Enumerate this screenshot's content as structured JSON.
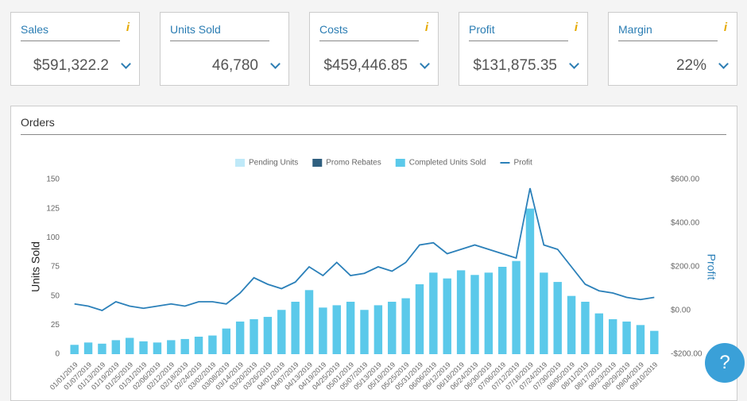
{
  "kpis": [
    {
      "label": "Sales",
      "value": "$591,322.2",
      "info": "i"
    },
    {
      "label": "Units Sold",
      "value": "46,780"
    },
    {
      "label": "Costs",
      "value": "$459,446.85",
      "info": "i"
    },
    {
      "label": "Profit",
      "value": "$131,875.35",
      "info": "i"
    },
    {
      "label": "Margin",
      "value": "22%",
      "info": "i"
    }
  ],
  "help": "?",
  "chart_data": {
    "type": "bar",
    "title": "Orders",
    "y_label": "Units Sold",
    "y2_label": "Profit",
    "categories": [
      "01/01/2019",
      "01/07/2019",
      "01/13/2019",
      "01/19/2019",
      "01/25/2019",
      "01/31/2019",
      "02/06/2019",
      "02/12/2019",
      "02/18/2019",
      "02/24/2019",
      "03/02/2019",
      "03/08/2019",
      "03/14/2019",
      "03/20/2019",
      "03/26/2019",
      "04/01/2019",
      "04/07/2019",
      "04/13/2019",
      "04/19/2019",
      "04/25/2019",
      "05/01/2019",
      "05/07/2019",
      "05/13/2019",
      "05/19/2019",
      "05/25/2019",
      "05/31/2019",
      "06/06/2019",
      "06/12/2019",
      "06/18/2019",
      "06/24/2019",
      "06/30/2019",
      "07/06/2019",
      "07/12/2019",
      "07/18/2019",
      "07/24/2019",
      "07/30/2019",
      "08/05/2019",
      "08/11/2019",
      "08/17/2019",
      "08/23/2019",
      "08/29/2019",
      "09/04/2019",
      "09/10/2019"
    ],
    "series": [
      {
        "name": "Pending Units",
        "color": "#bfe9f8"
      },
      {
        "name": "Promo Rebates",
        "color": "#2f5f7f"
      },
      {
        "name": "Completed Units Sold",
        "color": "#5bc9ea",
        "values": [
          8,
          10,
          9,
          12,
          14,
          11,
          10,
          12,
          13,
          15,
          16,
          22,
          28,
          30,
          32,
          38,
          45,
          55,
          40,
          42,
          45,
          38,
          42,
          45,
          48,
          60,
          70,
          65,
          72,
          68,
          70,
          75,
          80,
          125,
          70,
          62,
          50,
          45,
          35,
          30,
          28,
          25,
          20
        ]
      },
      {
        "name": "Profit",
        "color": "#2b80b9",
        "axis": "y2",
        "values": [
          30,
          20,
          0,
          40,
          20,
          10,
          20,
          30,
          20,
          40,
          40,
          30,
          80,
          150,
          120,
          100,
          130,
          200,
          160,
          220,
          160,
          170,
          200,
          180,
          220,
          300,
          310,
          260,
          280,
          300,
          280,
          260,
          240,
          560,
          300,
          280,
          200,
          120,
          90,
          80,
          60,
          50,
          60
        ]
      }
    ],
    "ylim": [
      0,
      150
    ],
    "yticks": [
      0,
      25,
      50,
      75,
      100,
      125,
      150
    ],
    "y2lim": [
      -200,
      600
    ],
    "y2ticks": [
      {
        "value": -200,
        "label": "-$200.00"
      },
      {
        "value": 0,
        "label": "$0.00"
      },
      {
        "value": 200,
        "label": "$200.00"
      },
      {
        "value": 400,
        "label": "$400.00"
      },
      {
        "value": 600,
        "label": "$600.00"
      }
    ]
  }
}
